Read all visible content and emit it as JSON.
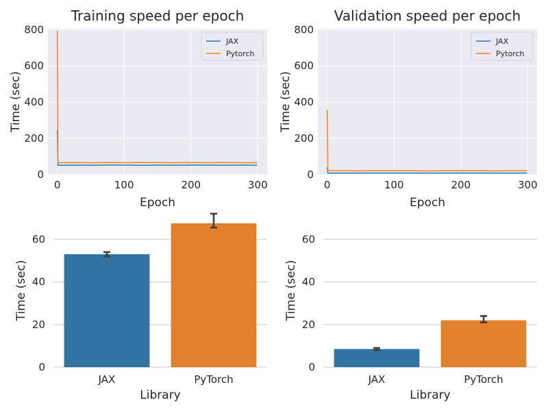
{
  "chart_data": [
    {
      "id": "train-line",
      "type": "line",
      "title": "Training speed per epoch",
      "xlabel": "Epoch",
      "ylabel": "Time (sec)",
      "xlim": [
        -14,
        314
      ],
      "ylim": [
        0,
        805
      ],
      "xticks": [
        0,
        100,
        200,
        300
      ],
      "yticks": [
        0,
        200,
        400,
        600,
        800
      ],
      "grid": true,
      "legend_position": "top-right",
      "series": [
        {
          "name": "JAX",
          "color": "#1f77b4",
          "first_epoch": 245,
          "x": [
            1,
            25,
            50,
            75,
            100,
            125,
            150,
            175,
            200,
            225,
            250,
            275,
            299
          ],
          "y": [
            52,
            53,
            52,
            53,
            53,
            52,
            53,
            52,
            53,
            53,
            52,
            53,
            52
          ]
        },
        {
          "name": "Pytorch",
          "color": "#ff7f0e",
          "first_epoch": 795,
          "x": [
            1,
            25,
            50,
            75,
            100,
            125,
            150,
            175,
            200,
            225,
            250,
            275,
            299
          ],
          "y": [
            66,
            67,
            66,
            67,
            66,
            67,
            67,
            66,
            67,
            66,
            67,
            66,
            66
          ]
        }
      ]
    },
    {
      "id": "val-line",
      "type": "line",
      "title": "Validation speed per epoch",
      "xlabel": "Epoch",
      "ylabel": "Time (sec)",
      "xlim": [
        -14,
        314
      ],
      "ylim": [
        0,
        805
      ],
      "xticks": [
        0,
        100,
        200,
        300
      ],
      "yticks": [
        0,
        200,
        400,
        600,
        800
      ],
      "grid": true,
      "legend_position": "top-right",
      "series": [
        {
          "name": "JAX",
          "color": "#1f77b4",
          "first_epoch": 40,
          "x": [
            1,
            25,
            50,
            75,
            100,
            125,
            150,
            175,
            200,
            225,
            250,
            275,
            299
          ],
          "y": [
            9,
            9,
            9,
            9,
            9,
            9,
            9,
            9,
            9,
            9,
            9,
            9,
            9
          ]
        },
        {
          "name": "Pytorch",
          "color": "#ff7f0e",
          "first_epoch": 358,
          "x": [
            1,
            25,
            50,
            75,
            100,
            125,
            150,
            175,
            200,
            225,
            250,
            275,
            299
          ],
          "y": [
            22,
            22,
            21,
            22,
            22,
            22,
            21,
            22,
            22,
            22,
            21,
            22,
            22
          ]
        }
      ]
    },
    {
      "id": "train-bar",
      "type": "bar",
      "xlabel": "Library",
      "ylabel": "Time (sec)",
      "ylim": [
        0,
        72
      ],
      "yticks": [
        0,
        20,
        40,
        60
      ],
      "grid": true,
      "categories": [
        "JAX",
        "PyTorch"
      ],
      "values": [
        53,
        67.5
      ],
      "error": [
        [
          52,
          54
        ],
        [
          65.5,
          72
        ]
      ],
      "colors": [
        "#3274a1",
        "#e1812c"
      ]
    },
    {
      "id": "val-bar",
      "type": "bar",
      "xlabel": "Library",
      "ylabel": "Time (sec)",
      "ylim": [
        0,
        72
      ],
      "yticks": [
        0,
        20,
        40,
        60
      ],
      "grid": true,
      "categories": [
        "JAX",
        "PyTorch"
      ],
      "values": [
        8.5,
        22
      ],
      "error": [
        [
          8,
          9
        ],
        [
          21,
          24
        ]
      ],
      "colors": [
        "#3274a1",
        "#e1812c"
      ]
    }
  ]
}
